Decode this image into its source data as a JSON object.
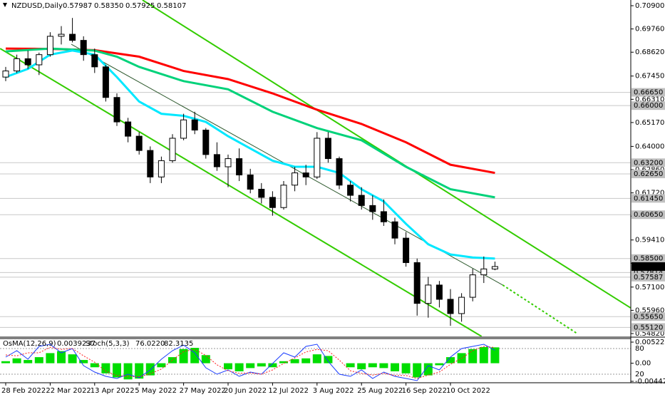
{
  "chart_data": {
    "type": "candlestick",
    "title": "NZDUSD,Daily",
    "ohlc_labels": [
      "0.57987",
      "0.58350",
      "0.57925",
      "0.58107"
    ],
    "candles": [
      [
        0.674,
        0.679,
        0.672,
        0.677
      ],
      [
        0.677,
        0.685,
        0.676,
        0.683
      ],
      [
        0.683,
        0.687,
        0.678,
        0.68
      ],
      [
        0.68,
        0.686,
        0.675,
        0.685
      ],
      [
        0.685,
        0.696,
        0.684,
        0.694
      ],
      [
        0.694,
        0.699,
        0.69,
        0.695
      ],
      [
        0.695,
        0.703,
        0.691,
        0.692
      ],
      [
        0.692,
        0.694,
        0.682,
        0.685
      ],
      [
        0.685,
        0.688,
        0.676,
        0.679
      ],
      [
        0.679,
        0.68,
        0.662,
        0.664
      ],
      [
        0.664,
        0.666,
        0.65,
        0.652
      ],
      [
        0.652,
        0.654,
        0.642,
        0.645
      ],
      [
        0.645,
        0.647,
        0.636,
        0.638
      ],
      [
        0.638,
        0.64,
        0.622,
        0.625
      ],
      [
        0.625,
        0.635,
        0.622,
        0.633
      ],
      [
        0.633,
        0.646,
        0.632,
        0.644
      ],
      [
        0.644,
        0.656,
        0.643,
        0.653
      ],
      [
        0.653,
        0.657,
        0.646,
        0.648
      ],
      [
        0.648,
        0.649,
        0.634,
        0.636
      ],
      [
        0.636,
        0.642,
        0.628,
        0.63
      ],
      [
        0.63,
        0.636,
        0.62,
        0.634
      ],
      [
        0.634,
        0.639,
        0.623,
        0.626
      ],
      [
        0.626,
        0.629,
        0.617,
        0.619
      ],
      [
        0.619,
        0.622,
        0.612,
        0.615
      ],
      [
        0.615,
        0.618,
        0.606,
        0.61
      ],
      [
        0.61,
        0.623,
        0.609,
        0.621
      ],
      [
        0.621,
        0.63,
        0.618,
        0.627
      ],
      [
        0.627,
        0.631,
        0.621,
        0.625
      ],
      [
        0.625,
        0.647,
        0.624,
        0.644
      ],
      [
        0.644,
        0.647,
        0.632,
        0.634
      ],
      [
        0.634,
        0.635,
        0.619,
        0.621
      ],
      [
        0.621,
        0.623,
        0.613,
        0.616
      ],
      [
        0.616,
        0.62,
        0.609,
        0.611
      ],
      [
        0.611,
        0.616,
        0.604,
        0.608
      ],
      [
        0.608,
        0.614,
        0.601,
        0.603
      ],
      [
        0.603,
        0.605,
        0.592,
        0.595
      ],
      [
        0.595,
        0.598,
        0.581,
        0.583
      ],
      [
        0.583,
        0.585,
        0.557,
        0.563
      ],
      [
        0.563,
        0.576,
        0.556,
        0.572
      ],
      [
        0.572,
        0.574,
        0.561,
        0.565
      ],
      [
        0.565,
        0.57,
        0.552,
        0.558
      ],
      [
        0.558,
        0.568,
        0.554,
        0.566
      ],
      [
        0.566,
        0.58,
        0.564,
        0.577
      ],
      [
        0.577,
        0.586,
        0.573,
        0.5799
      ],
      [
        0.57987,
        0.5835,
        0.57925,
        0.58107
      ]
    ],
    "ylim": [
      0.5468,
      0.7118
    ],
    "yticks": [
      {
        "value": 0.709,
        "label": "0.70900"
      },
      {
        "value": 0.6976,
        "label": "0.69760"
      },
      {
        "value": 0.6862,
        "label": "0.68620"
      },
      {
        "value": 0.6745,
        "label": "0.67450"
      },
      {
        "value": 0.6631,
        "label": "0.66310"
      },
      {
        "value": 0.6517,
        "label": "0.65170"
      },
      {
        "value": 0.64,
        "label": "0.64000"
      },
      {
        "value": 0.6286,
        "label": "0.62860"
      },
      {
        "value": 0.6172,
        "label": "0.61720"
      },
      {
        "value": 0.6058,
        "label": "0.60580"
      },
      {
        "value": 0.5941,
        "label": "0.59410"
      },
      {
        "value": 0.5827,
        "label": "0.58270"
      },
      {
        "value": 0.571,
        "label": "0.57100"
      },
      {
        "value": 0.5596,
        "label": "0.55960"
      },
      {
        "value": 0.5482,
        "label": "0.54820"
      }
    ],
    "levels": [
      {
        "value": 0.6665,
        "label": "0.66650"
      },
      {
        "value": 0.66,
        "label": "0.66000"
      },
      {
        "value": 0.632,
        "label": "0.63200"
      },
      {
        "value": 0.6265,
        "label": "0.62650"
      },
      {
        "value": 0.6145,
        "label": "0.61450"
      },
      {
        "value": 0.6065,
        "label": "0.60650"
      },
      {
        "value": 0.585,
        "label": "0.58500"
      },
      {
        "value": 0.57814,
        "label": "0.57814"
      },
      {
        "value": 0.57587,
        "label": "0.57587"
      },
      {
        "value": 0.5565,
        "label": "0.55650"
      },
      {
        "value": 0.5512,
        "label": "0.55120"
      }
    ],
    "xlabels": [
      {
        "value": 0,
        "label": "28 Feb 2022"
      },
      {
        "value": 4,
        "label": "22 Mar 2022"
      },
      {
        "value": 8,
        "label": "13 Apr 2022"
      },
      {
        "value": 12,
        "label": "5 May 2022"
      },
      {
        "value": 16,
        "label": "27 May 2022"
      },
      {
        "value": 20,
        "label": "20 Jun 2022"
      },
      {
        "value": 24,
        "label": "12 Jul 2022"
      },
      {
        "value": 28,
        "label": "3 Aug 2022"
      },
      {
        "value": 32,
        "label": "25 Aug 2022"
      },
      {
        "value": 36,
        "label": "16 Sep 2022"
      },
      {
        "value": 40,
        "label": "10 Oct 2022"
      }
    ],
    "moving_averages": [
      {
        "color": "#ff0000",
        "x": [
          0,
          4,
          8,
          12,
          16,
          20,
          24,
          28,
          32,
          36,
          40,
          44
        ],
        "values": [
          0.688,
          0.6878,
          0.6872,
          0.684,
          0.677,
          0.673,
          0.666,
          0.658,
          0.651,
          0.642,
          0.631,
          0.627
        ]
      },
      {
        "color": "#00d27a",
        "x": [
          0,
          4,
          8,
          10,
          12,
          16,
          20,
          24,
          28,
          32,
          36,
          40,
          44
        ],
        "values": [
          0.6866,
          0.688,
          0.687,
          0.684,
          0.679,
          0.672,
          0.668,
          0.657,
          0.649,
          0.643,
          0.63,
          0.619,
          0.615
        ]
      },
      {
        "color": "#00e8ff",
        "x": [
          0,
          2,
          4,
          6,
          8,
          10,
          12,
          14,
          16,
          18,
          20,
          22,
          24,
          26,
          28,
          30,
          32,
          34,
          36,
          38,
          40,
          42,
          44
        ],
        "values": [
          0.674,
          0.678,
          0.685,
          0.687,
          0.685,
          0.674,
          0.662,
          0.656,
          0.655,
          0.652,
          0.645,
          0.639,
          0.633,
          0.63,
          0.63,
          0.627,
          0.619,
          0.613,
          0.602,
          0.592,
          0.587,
          0.5855,
          0.585
        ]
      }
    ],
    "trendlines": [
      {
        "color": "#33cc00",
        "x": [
          12.3,
          56.2
        ],
        "y": [
          0.7118,
          0.5608
        ]
      },
      {
        "color": "#33cc00",
        "x": [
          -0.5,
          42.8
        ],
        "y": [
          0.688,
          0.5468
        ]
      },
      {
        "color": "#2f5a2f",
        "x": [
          5.9,
          44.7
        ],
        "y": [
          0.6901,
          0.572
        ]
      },
      {
        "color": "#33cc00",
        "dashed": true,
        "x": [
          44.7,
          51.4
        ],
        "y": [
          0.572,
          0.5482
        ]
      }
    ],
    "indicator": {
      "osma_name": "OsMA(12,26,9)",
      "stoch_name": "Stoch(5,3,3)",
      "stoch_labels": [
        "76.0220",
        "82.3135"
      ],
      "osma": [
        0.0005,
        0.0012,
        0.0008,
        0.0015,
        0.0025,
        0.003,
        0.0022,
        0.0008,
        -0.001,
        -0.0025,
        -0.0035,
        -0.004,
        -0.0038,
        -0.003,
        -0.001,
        0.0015,
        0.0035,
        0.0038,
        0.002,
        0.0,
        -0.0015,
        -0.002,
        -0.0012,
        -0.0008,
        -0.001,
        0.0005,
        0.001,
        0.0012,
        0.0022,
        0.0018,
        0.0,
        -0.001,
        -0.0015,
        -0.001,
        -0.0012,
        -0.002,
        -0.0025,
        -0.0035,
        -0.003,
        -0.0005,
        0.0015,
        0.0025,
        0.0035,
        0.004,
        0.0039237
      ],
      "stoch_main": [
        60,
        75,
        55,
        85,
        90,
        70,
        80,
        40,
        25,
        15,
        10,
        20,
        12,
        30,
        55,
        75,
        88,
        70,
        35,
        20,
        30,
        15,
        25,
        20,
        45,
        70,
        60,
        85,
        90,
        50,
        20,
        15,
        30,
        10,
        25,
        15,
        10,
        5,
        40,
        30,
        60,
        80,
        85,
        90,
        76.022
      ],
      "stoch_signal": [
        65,
        63,
        70,
        70,
        83,
        78,
        80,
        63,
        48,
        27,
        17,
        15,
        14,
        21,
        32,
        53,
        73,
        78,
        64,
        42,
        28,
        22,
        23,
        20,
        30,
        45,
        58,
        72,
        78,
        75,
        53,
        28,
        22,
        18,
        22,
        17,
        17,
        10,
        18,
        25,
        43,
        57,
        75,
        85,
        82.3135
      ],
      "osma_ylim": [
        -0.004476,
        0.0052212
      ],
      "osma_yticks": [
        0.0052212,
        {
          "value": 0,
          "label": "0.00"
        },
        -0.004476
      ],
      "stoch_ylim": [
        0,
        100
      ],
      "stoch_yticks": [
        80,
        20
      ]
    }
  }
}
